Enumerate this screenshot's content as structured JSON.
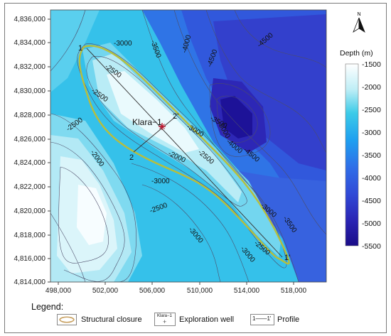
{
  "map": {
    "x_ticks": [
      "498,000",
      "502,000",
      "506,000",
      "510,000",
      "514,000",
      "518,000"
    ],
    "y_ticks": [
      "4,836,000",
      "4,834,000",
      "4,832,000",
      "4,830,000",
      "4,828,000",
      "4,826,000",
      "4,824,000",
      "4,822,000",
      "4,820,000",
      "4,818,000",
      "4,816,000",
      "4,814,000"
    ],
    "contour_labels": [
      "-3000",
      "-3500",
      "-4000",
      "-4500",
      "-4500",
      "-2500",
      "-2500",
      "-2500",
      "-3000",
      "-3500",
      "-5000",
      "-4000",
      "-4500",
      "-2000",
      "-2000",
      "-2500",
      "-3000",
      "-3000",
      "-3500",
      "-2500",
      "-3000",
      "-2500",
      "-3000"
    ],
    "well_name": "Klara−1",
    "profile_points": [
      "1",
      "1'",
      "2",
      "2'"
    ],
    "north_label": "N"
  },
  "colorbar": {
    "title": "Depth (m)",
    "ticks": [
      "-1500",
      "-2000",
      "-2500",
      "-3000",
      "-3500",
      "-4000",
      "-4500",
      "-5000",
      "-5500"
    ],
    "colors": [
      "#ffffff",
      "#aee9f3",
      "#29c6e6",
      "#1e8ff0",
      "#2d63e6",
      "#2c3fc8",
      "#1a0e8c"
    ]
  },
  "legend": {
    "title": "Legend:",
    "items": [
      {
        "label": "Structural closure",
        "icon": "closure-outline-icon",
        "color": "#c8a060"
      },
      {
        "label": "Exploration well",
        "icon": "well-marker-icon",
        "sample": "Klara−1"
      },
      {
        "label": "Profile",
        "icon": "profile-line-icon",
        "sample": "1——1'"
      }
    ]
  }
}
